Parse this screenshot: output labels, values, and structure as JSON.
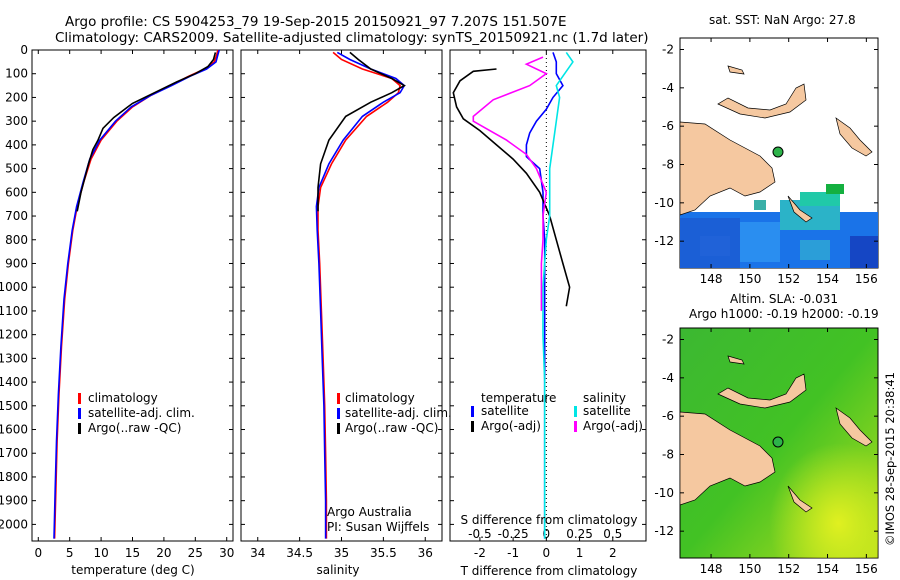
{
  "header": {
    "title_line1": "Argo profile: CS 5904253_79 19-Sep-2015 20150921_97 7.207S 151.507E",
    "title_line2": "Climatology: CARS2009. Satellite-adjusted climatology: synTS_20150921.nc (1.7d later)"
  },
  "colors": {
    "climatology": "#ff0000",
    "satellite": "#0000ff",
    "argo": "#000000",
    "argo_salinity_diff": "#ff00ff",
    "satellite_salinity_diff": "#00e5e5",
    "land": "#f5c8a0",
    "float_marker": "#2db34a"
  },
  "chart_data": [
    {
      "type": "line",
      "id": "temperature",
      "xlabel": "temperature (deg C)",
      "ylabel": "",
      "xlim": [
        -1,
        31
      ],
      "ylim": [
        2070,
        0
      ],
      "xticks": [
        "0",
        "5",
        "10",
        "15",
        "20",
        "25",
        "30"
      ],
      "xtick_values": [
        0,
        5,
        10,
        15,
        20,
        25,
        30
      ],
      "yticks": [
        "0",
        "100",
        "200",
        "300",
        "400",
        "500",
        "600",
        "700",
        "800",
        "900",
        "1000",
        "1100",
        "1200",
        "1300",
        "1400",
        "1500",
        "1600",
        "1700",
        "1800",
        "1900",
        "2000"
      ],
      "ytick_values": [
        0,
        100,
        200,
        300,
        400,
        500,
        600,
        700,
        800,
        900,
        1000,
        1100,
        1200,
        1300,
        1400,
        1500,
        1600,
        1700,
        1800,
        1900,
        2000
      ],
      "legend": [
        "climatology",
        "satellite-adj. clim.",
        "Argo(..raw -QC)"
      ],
      "series": [
        {
          "name": "climatology",
          "color": "#ff0000",
          "points": [
            [
              28.6,
              0
            ],
            [
              28.4,
              20
            ],
            [
              28.0,
              50
            ],
            [
              26.5,
              80
            ],
            [
              24.0,
              110
            ],
            [
              21.0,
              150
            ],
            [
              18.0,
              190
            ],
            [
              15.0,
              240
            ],
            [
              12.5,
              300
            ],
            [
              10.0,
              380
            ],
            [
              8.4,
              460
            ],
            [
              7.2,
              560
            ],
            [
              6.2,
              660
            ],
            [
              5.5,
              760
            ],
            [
              4.8,
              900
            ],
            [
              4.2,
              1050
            ],
            [
              3.7,
              1250
            ],
            [
              3.3,
              1450
            ],
            [
              3.0,
              1650
            ],
            [
              2.8,
              1850
            ],
            [
              2.6,
              2060
            ]
          ]
        },
        {
          "name": "satellite-adj. clim.",
          "color": "#0000ff",
          "points": [
            [
              28.8,
              0
            ],
            [
              28.6,
              20
            ],
            [
              28.3,
              50
            ],
            [
              26.8,
              80
            ],
            [
              24.2,
              110
            ],
            [
              21.2,
              150
            ],
            [
              18.0,
              190
            ],
            [
              14.8,
              240
            ],
            [
              12.3,
              300
            ],
            [
              9.8,
              380
            ],
            [
              8.2,
              460
            ],
            [
              7.1,
              560
            ],
            [
              6.1,
              660
            ],
            [
              5.4,
              760
            ],
            [
              4.7,
              900
            ],
            [
              4.1,
              1050
            ],
            [
              3.6,
              1250
            ],
            [
              3.2,
              1450
            ],
            [
              2.9,
              1650
            ],
            [
              2.7,
              1850
            ],
            [
              2.5,
              2060
            ]
          ]
        },
        {
          "name": "Argo(..raw -QC)",
          "color": "#000000",
          "points": [
            [
              28.2,
              10
            ],
            [
              27.9,
              40
            ],
            [
              27.0,
              70
            ],
            [
              25.0,
              100
            ],
            [
              22.0,
              135
            ],
            [
              18.5,
              180
            ],
            [
              15.0,
              225
            ],
            [
              12.0,
              285
            ],
            [
              10.3,
              330
            ],
            [
              9.5,
              380
            ],
            [
              8.7,
              420
            ],
            [
              8.0,
              480
            ],
            [
              7.4,
              540
            ],
            [
              6.8,
              600
            ],
            [
              6.2,
              680
            ]
          ]
        }
      ]
    },
    {
      "type": "line",
      "id": "salinity",
      "xlabel": "salinity",
      "ylabel": "",
      "xlim": [
        33.8,
        36.2
      ],
      "ylim": [
        2070,
        0
      ],
      "xticks": [
        "34",
        "34.5",
        "35",
        "35.5",
        "36"
      ],
      "xtick_values": [
        34,
        34.5,
        35,
        35.5,
        36
      ],
      "legend": [
        "climatology",
        "satellite-adj. clim.",
        "Argo(..raw -QC)"
      ],
      "annotations": [
        "Argo Australia",
        "PI: Susan Wijffels"
      ],
      "series": [
        {
          "name": "climatology",
          "color": "#ff0000",
          "points": [
            [
              34.9,
              10
            ],
            [
              35.0,
              40
            ],
            [
              35.25,
              80
            ],
            [
              35.6,
              120
            ],
            [
              35.7,
              150
            ],
            [
              35.68,
              180
            ],
            [
              35.55,
              220
            ],
            [
              35.3,
              280
            ],
            [
              35.05,
              380
            ],
            [
              34.88,
              480
            ],
            [
              34.75,
              580
            ],
            [
              34.72,
              660
            ],
            [
              34.72,
              760
            ],
            [
              34.74,
              900
            ],
            [
              34.76,
              1100
            ],
            [
              34.78,
              1300
            ],
            [
              34.8,
              1500
            ],
            [
              34.81,
              1700
            ],
            [
              34.82,
              1900
            ],
            [
              34.82,
              2060
            ]
          ]
        },
        {
          "name": "satellite-adj. clim.",
          "color": "#0000ff",
          "points": [
            [
              34.95,
              10
            ],
            [
              35.1,
              40
            ],
            [
              35.35,
              80
            ],
            [
              35.65,
              120
            ],
            [
              35.75,
              150
            ],
            [
              35.7,
              180
            ],
            [
              35.5,
              220
            ],
            [
              35.25,
              280
            ],
            [
              35.02,
              380
            ],
            [
              34.85,
              480
            ],
            [
              34.73,
              580
            ],
            [
              34.7,
              660
            ],
            [
              34.71,
              760
            ],
            [
              34.73,
              900
            ],
            [
              34.75,
              1100
            ],
            [
              34.77,
              1300
            ],
            [
              34.79,
              1500
            ],
            [
              34.8,
              1700
            ],
            [
              34.81,
              1900
            ],
            [
              34.81,
              2060
            ]
          ]
        },
        {
          "name": "Argo(..raw -QC)",
          "color": "#000000",
          "points": [
            [
              35.1,
              10
            ],
            [
              35.2,
              40
            ],
            [
              35.35,
              80
            ],
            [
              35.6,
              120
            ],
            [
              35.75,
              150
            ],
            [
              35.6,
              180
            ],
            [
              35.35,
              220
            ],
            [
              35.05,
              280
            ],
            [
              34.85,
              380
            ],
            [
              34.75,
              480
            ],
            [
              34.72,
              580
            ],
            [
              34.72,
              680
            ]
          ]
        }
      ]
    },
    {
      "type": "line",
      "id": "differences",
      "xlabel": "T difference from climatology",
      "xlabel_top": "S difference from climatology",
      "xlim": [
        -2.9,
        3.0
      ],
      "ylim": [
        2070,
        0
      ],
      "xticks": [
        "-2",
        "-1",
        "0",
        "1",
        "2"
      ],
      "xtick_values": [
        -2,
        -1,
        0,
        1,
        2
      ],
      "xticks_top": [
        "-0.5",
        "-0.25",
        "0",
        "0.25",
        "0.5"
      ],
      "xtick_top_values": [
        -2,
        -1,
        0,
        1,
        2
      ],
      "legend_temperature_header": "temperature",
      "legend_salinity_header": "salinity",
      "legend_temperature": [
        "satellite",
        "Argo(-adj)"
      ],
      "legend_salinity": [
        "satellite",
        "Argo(-adj)"
      ],
      "series": [
        {
          "name": "T satellite",
          "color": "#0000ff",
          "points": [
            [
              0.2,
              10
            ],
            [
              0.3,
              50
            ],
            [
              0.3,
              100
            ],
            [
              0.5,
              150
            ],
            [
              0.2,
              200
            ],
            [
              0.0,
              250
            ],
            [
              -0.3,
              300
            ],
            [
              -0.5,
              350
            ],
            [
              -0.6,
              400
            ],
            [
              -0.6,
              450
            ],
            [
              -0.2,
              500
            ],
            [
              -0.1,
              600
            ],
            [
              -0.1,
              700
            ],
            [
              -0.05,
              800
            ],
            [
              -0.05,
              1000
            ],
            [
              -0.05,
              1200
            ],
            [
              -0.05,
              1400
            ],
            [
              -0.05,
              1600
            ],
            [
              -0.05,
              1800
            ],
            [
              -0.05,
              2060
            ]
          ]
        },
        {
          "name": "T Argo(-adj)",
          "color": "#000000",
          "points": [
            [
              -1.5,
              80
            ],
            [
              -2.2,
              90
            ],
            [
              -2.6,
              130
            ],
            [
              -2.8,
              180
            ],
            [
              -2.7,
              240
            ],
            [
              -2.5,
              290
            ],
            [
              -2.0,
              340
            ],
            [
              -1.5,
              400
            ],
            [
              -1.0,
              460
            ],
            [
              -0.6,
              520
            ],
            [
              -0.2,
              600
            ],
            [
              0.1,
              700
            ],
            [
              0.3,
              800
            ],
            [
              0.5,
              900
            ],
            [
              0.7,
              1000
            ],
            [
              0.6,
              1080
            ]
          ]
        },
        {
          "name": "S satellite",
          "color": "#00e5e5",
          "points": [
            [
              0.6,
              10
            ],
            [
              0.8,
              50
            ],
            [
              0.6,
              90
            ],
            [
              0.3,
              150
            ],
            [
              0.4,
              200
            ],
            [
              0.3,
              300
            ],
            [
              0.2,
              400
            ],
            [
              0.1,
              500
            ],
            [
              0.1,
              600
            ],
            [
              0.1,
              700
            ],
            [
              0.0,
              800
            ],
            [
              -0.1,
              1000
            ],
            [
              -0.1,
              1200
            ],
            [
              -0.05,
              1400
            ],
            [
              -0.05,
              1600
            ],
            [
              -0.05,
              1800
            ],
            [
              -0.05,
              2060
            ]
          ]
        },
        {
          "name": "S Argo(-adj)",
          "color": "#ff00ff",
          "points": [
            [
              -0.1,
              30
            ],
            [
              -0.6,
              60
            ],
            [
              0.0,
              100
            ],
            [
              -0.5,
              150
            ],
            [
              -1.6,
              210
            ],
            [
              -2.2,
              280
            ],
            [
              -2.2,
              300
            ],
            [
              -1.2,
              380
            ],
            [
              -0.6,
              440
            ],
            [
              -0.3,
              500
            ],
            [
              0.0,
              600
            ],
            [
              -0.1,
              700
            ],
            [
              -0.1,
              800
            ],
            [
              -0.15,
              900
            ],
            [
              -0.15,
              1000
            ],
            [
              -0.15,
              1100
            ]
          ]
        }
      ]
    }
  ],
  "maps": {
    "sst": {
      "title": "sat. SST: NaN Argo: 27.8",
      "xticks": [
        "148",
        "150",
        "152",
        "154",
        "156"
      ],
      "yticks": [
        "-2",
        "-4",
        "-6",
        "-8",
        "-10",
        "-12"
      ]
    },
    "sla": {
      "title_line1": "Altim. SLA: -0.031",
      "title_line2": "Argo h1000: -0.19 h2000: -0.19",
      "xticks": [
        "148",
        "150",
        "152",
        "154",
        "156"
      ],
      "yticks": [
        "-2",
        "-4",
        "-6",
        "-8",
        "-10",
        "-12"
      ]
    }
  },
  "side_text": "©IMOS 28-Sep-2015 20:38:41"
}
